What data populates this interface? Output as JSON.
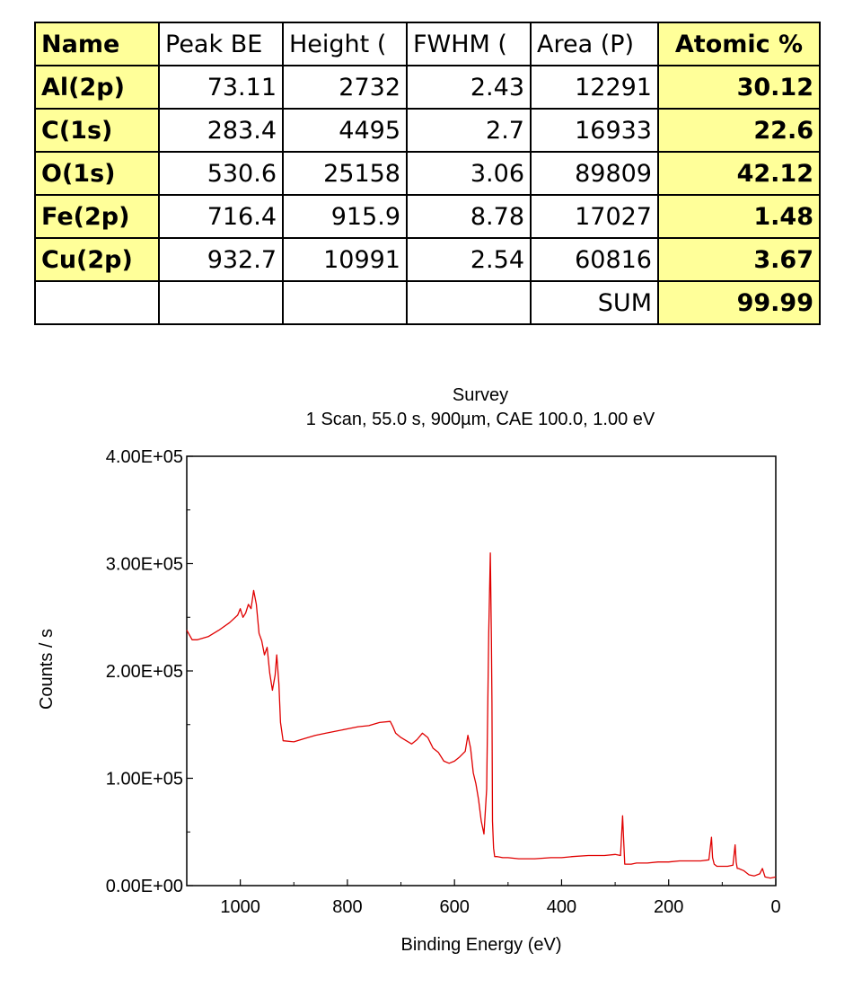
{
  "table": {
    "headers": [
      "Name",
      "Peak BE",
      "Height (",
      "FWHM (",
      "Area (P)",
      "Atomic %"
    ],
    "rows": [
      {
        "name": "Al(2p)",
        "peak": "73.11",
        "height": "2732",
        "fwhm": "2.43",
        "area": "12291",
        "atomic": "30.12"
      },
      {
        "name": "C(1s)",
        "peak": "283.4",
        "height": "4495",
        "fwhm": "2.7",
        "area": "16933",
        "atomic": "22.6"
      },
      {
        "name": "O(1s)",
        "peak": "530.6",
        "height": "25158",
        "fwhm": "3.06",
        "area": "89809",
        "atomic": "42.12"
      },
      {
        "name": "Fe(2p)",
        "peak": "716.4",
        "height": "915.9",
        "fwhm": "8.78",
        "area": "17027",
        "atomic": "1.48"
      },
      {
        "name": "Cu(2p)",
        "peak": "932.7",
        "height": "10991",
        "fwhm": "2.54",
        "area": "60816",
        "atomic": "3.67"
      }
    ],
    "sum_label": "SUM",
    "sum_value": "99.99",
    "highlight_color": "#ffff99"
  },
  "chart_data": {
    "type": "line",
    "title": "Survey",
    "subtitle": "1 Scan,  55.0 s,  900µm,  CAE 100.0,  1.00 eV",
    "xlabel": "Binding Energy (eV)",
    "ylabel": "Counts / s",
    "xlim": [
      1100,
      0
    ],
    "ylim": [
      0,
      400000
    ],
    "x_reversed": true,
    "x_ticks": [
      1000,
      800,
      600,
      400,
      200,
      0
    ],
    "x_tick_labels": [
      "1000",
      "800",
      "600",
      "400",
      "200",
      "0"
    ],
    "y_ticks": [
      0,
      100000,
      200000,
      300000,
      400000
    ],
    "y_tick_labels": [
      "0.00E+00",
      "1.00E+05",
      "2.00E+05",
      "3.00E+05",
      "4.00E+05"
    ],
    "grid": false,
    "line_color": "#e00000",
    "series": [
      {
        "x": [
          1100,
          1090,
          1080,
          1060,
          1040,
          1020,
          1005,
          1000,
          995,
          990,
          985,
          980,
          975,
          970,
          965,
          960,
          955,
          950,
          945,
          940,
          935,
          932,
          928,
          925,
          920,
          900,
          880,
          860,
          840,
          820,
          800,
          780,
          760,
          740,
          720,
          715,
          710,
          700,
          690,
          680,
          670,
          660,
          650,
          640,
          630,
          620,
          610,
          600,
          590,
          580,
          575,
          570,
          565,
          560,
          555,
          550,
          545,
          540,
          536,
          533,
          531,
          530,
          529,
          527,
          525,
          520,
          510,
          500,
          480,
          450,
          420,
          400,
          380,
          350,
          320,
          300,
          290,
          286,
          284,
          282,
          280,
          275,
          270,
          260,
          240,
          220,
          200,
          180,
          160,
          140,
          125,
          120,
          118,
          115,
          110,
          100,
          90,
          80,
          76,
          74,
          72,
          70,
          60,
          50,
          40,
          30,
          25,
          20,
          10,
          0
        ],
        "y": [
          238000,
          229000,
          229000,
          232000,
          238000,
          245000,
          252000,
          258000,
          250000,
          254000,
          262000,
          258000,
          275000,
          262000,
          235000,
          228000,
          215000,
          222000,
          198000,
          182000,
          196000,
          215000,
          188000,
          152000,
          135000,
          134000,
          137000,
          140000,
          142000,
          144000,
          146000,
          148000,
          149000,
          152000,
          153000,
          148000,
          142000,
          138000,
          135000,
          132000,
          136000,
          142000,
          138000,
          128000,
          124000,
          116000,
          114000,
          116000,
          120000,
          125000,
          140000,
          128000,
          105000,
          95000,
          80000,
          60000,
          48000,
          90000,
          235000,
          310000,
          228000,
          170000,
          60000,
          35000,
          27000,
          27000,
          26000,
          26000,
          25000,
          25000,
          26000,
          26000,
          27000,
          28000,
          28000,
          29000,
          28000,
          65000,
          42000,
          20000,
          20000,
          20000,
          20000,
          21000,
          21000,
          22000,
          22000,
          23000,
          23000,
          23000,
          24000,
          45000,
          26000,
          20000,
          18000,
          18000,
          18000,
          19000,
          38000,
          22000,
          16000,
          16000,
          14000,
          10000,
          9000,
          11000,
          16000,
          8000,
          7000,
          8000
        ]
      }
    ]
  }
}
